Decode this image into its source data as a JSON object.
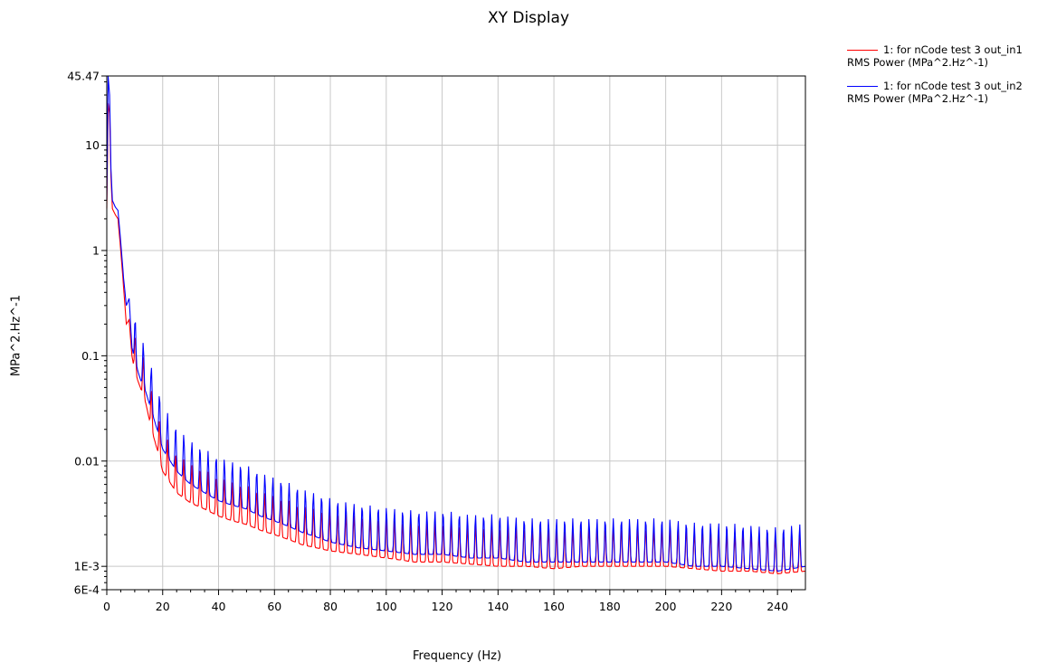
{
  "chart_data": {
    "type": "line",
    "title": "XY Display",
    "xlabel": "Frequency (Hz)",
    "ylabel": "MPa^2.Hz^-1",
    "xlim": [
      0,
      250
    ],
    "ylim": [
      0.0006,
      45.47
    ],
    "y_scale": "log",
    "grid": true,
    "legend_position": "top-right",
    "x_ticks": [
      0,
      20,
      40,
      60,
      80,
      100,
      120,
      140,
      160,
      180,
      200,
      220,
      240
    ],
    "x_tick_labels": [
      "0",
      "20",
      "40",
      "60",
      "80",
      "100",
      "120",
      "140",
      "160",
      "180",
      "200",
      "220",
      "240"
    ],
    "y_ticks": [
      0.0006,
      0.001,
      0.01,
      0.1,
      1,
      10,
      45.47
    ],
    "y_tick_labels": [
      "6E-4",
      "1E-3",
      "0.01",
      "0.1",
      "1",
      "10",
      "45.47"
    ],
    "series": [
      {
        "name": "1: for nCode test 3 out_in1",
        "legend_subtitle": "RMS Power (MPa^2.Hz^-1)",
        "color": "#ff0000",
        "x": [
          0,
          0.5,
          1,
          1.5,
          2,
          3,
          4,
          5,
          6,
          7,
          8,
          9,
          10,
          12,
          14,
          16,
          18,
          20,
          25,
          30,
          35,
          40,
          45,
          50,
          55,
          60,
          65,
          70,
          75,
          80,
          90,
          100,
          110,
          120,
          130,
          140,
          150,
          160,
          170,
          180,
          190,
          200,
          210,
          220,
          230,
          240,
          250
        ],
        "y": [
          2.5,
          25,
          20,
          5,
          2.5,
          2.2,
          2.0,
          1.0,
          0.45,
          0.2,
          0.22,
          0.1,
          0.07,
          0.05,
          0.035,
          0.02,
          0.013,
          0.008,
          0.005,
          0.004,
          0.0035,
          0.003,
          0.0027,
          0.0025,
          0.0022,
          0.002,
          0.0018,
          0.0016,
          0.0015,
          0.0014,
          0.0013,
          0.0012,
          0.0011,
          0.0011,
          0.00105,
          0.001,
          0.001,
          0.00095,
          0.001,
          0.001,
          0.001,
          0.001,
          0.00095,
          0.0009,
          0.0009,
          0.00085,
          0.0009
        ]
      },
      {
        "name": "1: for nCode test 3 out_in2",
        "legend_subtitle": "RMS Power (MPa^2.Hz^-1)",
        "color": "#0000ff",
        "x": [
          0,
          0.5,
          1,
          1.5,
          2,
          3,
          4,
          5,
          6,
          7,
          8,
          9,
          10,
          12,
          14,
          16,
          18,
          20,
          25,
          30,
          35,
          40,
          45,
          50,
          55,
          60,
          65,
          70,
          75,
          80,
          90,
          100,
          110,
          120,
          130,
          140,
          150,
          160,
          170,
          180,
          190,
          200,
          210,
          220,
          230,
          240,
          250
        ],
        "y": [
          3.0,
          45,
          30,
          6,
          3.0,
          2.6,
          2.4,
          1.2,
          0.55,
          0.3,
          0.35,
          0.12,
          0.09,
          0.06,
          0.045,
          0.03,
          0.02,
          0.013,
          0.008,
          0.006,
          0.005,
          0.0042,
          0.0038,
          0.0035,
          0.003,
          0.0027,
          0.0024,
          0.0021,
          0.0019,
          0.0017,
          0.0015,
          0.0014,
          0.0013,
          0.0013,
          0.0012,
          0.0012,
          0.0011,
          0.0011,
          0.0011,
          0.0011,
          0.0011,
          0.0011,
          0.001,
          0.001,
          0.00095,
          0.0009,
          0.001
        ]
      }
    ]
  }
}
